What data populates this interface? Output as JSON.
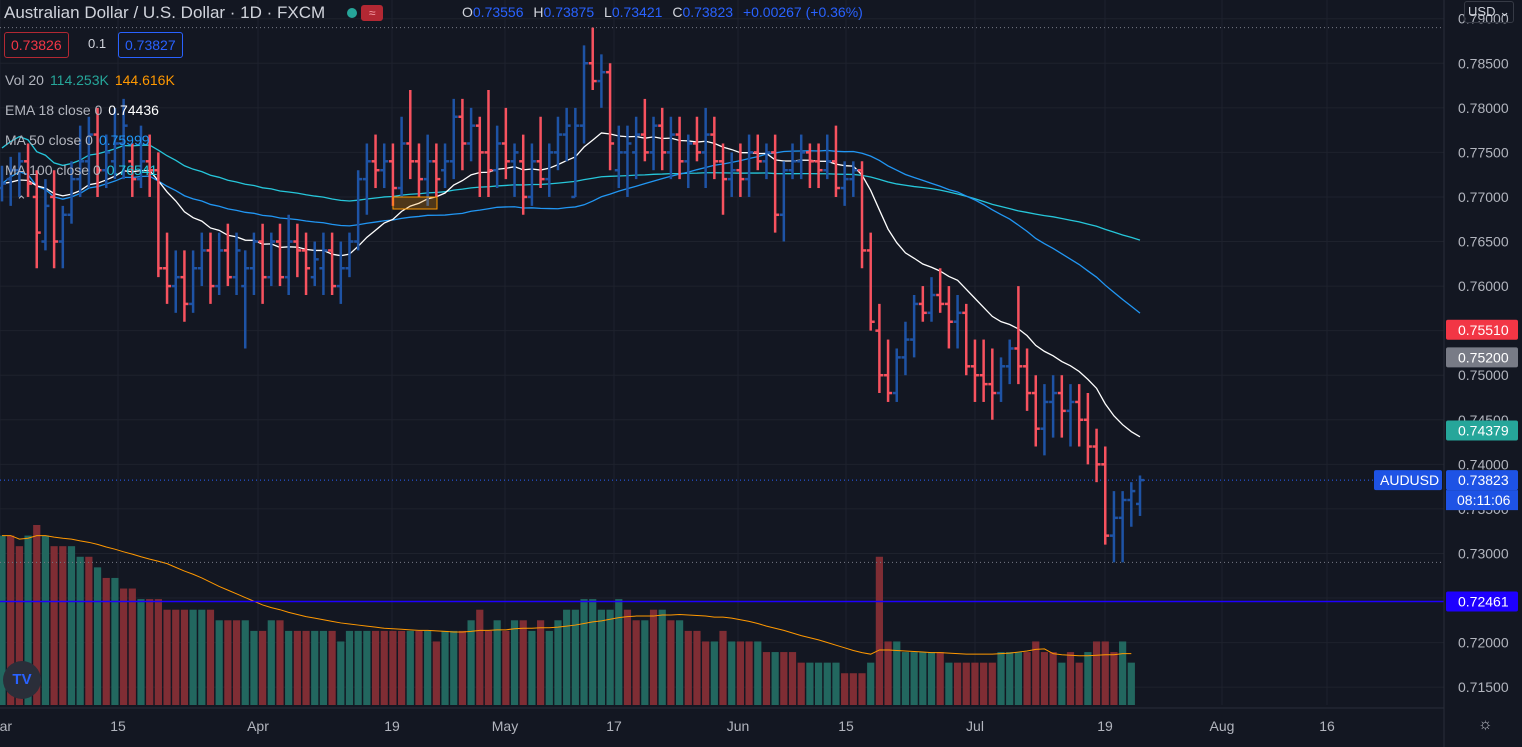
{
  "header": {
    "symbol_title": "Australian Dollar / U.S. Dollar · 1D · FXCM",
    "ohlc": {
      "o_label": "O",
      "o": "0.73556",
      "h_label": "H",
      "h": "0.73875",
      "l_label": "L",
      "l": "0.73421",
      "c_label": "C",
      "c": "0.73823",
      "change": "+0.00267 (+0.36%)"
    },
    "wave_icon": "wave-icon"
  },
  "trade": {
    "sell": "0.73826",
    "qty": "0.1",
    "buy": "0.73827"
  },
  "legend": {
    "vol": {
      "name": "Vol 20",
      "v1": "114.253K",
      "v2": "144.616K"
    },
    "ema": {
      "name": "EMA 18 close 0",
      "value": "0.74436"
    },
    "ma50": {
      "name": "MA 50 close 0",
      "value": "0.75999"
    },
    "ma100": {
      "name": "MA 100 close 0",
      "value": "0.76541"
    }
  },
  "currency_select": "USD",
  "logo_text": "TV",
  "colors": {
    "up": "#1e53a5",
    "down": "#f7525f",
    "vol_up": "#22675f",
    "vol_down": "#7f2d34",
    "ema": "#ffffff",
    "ma50": "#2196f3",
    "ma100": "#26c6da",
    "vol_ma": "#ff9800",
    "hline": "#1e00ff"
  },
  "chart_data": {
    "type": "ohlc",
    "y_ticks": [
      "0.79000",
      "0.78500",
      "0.78000",
      "0.77500",
      "0.77000",
      "0.76500",
      "0.76000",
      "0.75500",
      "0.75000",
      "0.74500",
      "0.74000",
      "0.73500",
      "0.73000",
      "0.72500",
      "0.72000",
      "0.71500"
    ],
    "x_ticks": [
      "Mar",
      "15",
      "Apr",
      "19",
      "May",
      "17",
      "Jun",
      "15",
      "Jul",
      "19",
      "Aug",
      "16"
    ],
    "ylim": [
      0.713,
      0.7912
    ],
    "price_labels": [
      {
        "text": "0.75510",
        "value": 0.7551,
        "color": "#f23645"
      },
      {
        "text": "0.75200",
        "value": 0.752,
        "color": "#787b86"
      },
      {
        "text": "0.74379",
        "value": 0.7438,
        "color": "#26a69a"
      },
      {
        "text": "0.73823",
        "value": 0.73823,
        "color": "#1e53e5",
        "tag": "AUDUSD",
        "sub": "08:11:06"
      },
      {
        "text": "0.72461",
        "value": 0.72461,
        "color": "#1e00ff"
      }
    ],
    "hline": 0.72461,
    "bars": [
      [
        0.771,
        0.7735,
        0.7695,
        0.7715
      ],
      [
        0.772,
        0.7745,
        0.769,
        0.773
      ],
      [
        0.773,
        0.775,
        0.77,
        0.774
      ],
      [
        0.774,
        0.776,
        0.77,
        0.7715
      ],
      [
        0.77,
        0.773,
        0.762,
        0.766
      ],
      [
        0.765,
        0.772,
        0.764,
        0.769
      ],
      [
        0.77,
        0.773,
        0.762,
        0.765
      ],
      [
        0.765,
        0.769,
        0.762,
        0.768
      ],
      [
        0.768,
        0.774,
        0.767,
        0.772
      ],
      [
        0.772,
        0.778,
        0.77,
        0.774
      ],
      [
        0.774,
        0.779,
        0.771,
        0.777
      ],
      [
        0.777,
        0.78,
        0.77,
        0.773
      ],
      [
        0.773,
        0.777,
        0.771,
        0.775
      ],
      [
        0.774,
        0.78,
        0.772,
        0.776
      ],
      [
        0.776,
        0.781,
        0.772,
        0.778
      ],
      [
        0.774,
        0.776,
        0.77,
        0.772
      ],
      [
        0.772,
        0.778,
        0.771,
        0.774
      ],
      [
        0.774,
        0.777,
        0.77,
        0.773
      ],
      [
        0.773,
        0.775,
        0.761,
        0.762
      ],
      [
        0.762,
        0.766,
        0.758,
        0.76
      ],
      [
        0.76,
        0.764,
        0.757,
        0.761
      ],
      [
        0.761,
        0.764,
        0.756,
        0.758
      ],
      [
        0.758,
        0.764,
        0.757,
        0.762
      ],
      [
        0.762,
        0.766,
        0.76,
        0.764
      ],
      [
        0.764,
        0.766,
        0.758,
        0.76
      ],
      [
        0.76,
        0.766,
        0.759,
        0.764
      ],
      [
        0.764,
        0.767,
        0.76,
        0.761
      ],
      [
        0.761,
        0.766,
        0.759,
        0.764
      ],
      [
        0.76,
        0.764,
        0.753,
        0.762
      ],
      [
        0.762,
        0.766,
        0.759,
        0.765
      ],
      [
        0.765,
        0.767,
        0.758,
        0.761
      ],
      [
        0.761,
        0.766,
        0.76,
        0.765
      ],
      [
        0.765,
        0.767,
        0.76,
        0.761
      ],
      [
        0.761,
        0.768,
        0.759,
        0.765
      ],
      [
        0.765,
        0.767,
        0.761,
        0.764
      ],
      [
        0.764,
        0.766,
        0.759,
        0.762
      ],
      [
        0.761,
        0.765,
        0.76,
        0.763
      ],
      [
        0.762,
        0.766,
        0.759,
        0.764
      ],
      [
        0.764,
        0.766,
        0.759,
        0.76
      ],
      [
        0.76,
        0.765,
        0.758,
        0.762
      ],
      [
        0.762,
        0.766,
        0.761,
        0.765
      ],
      [
        0.765,
        0.773,
        0.764,
        0.772
      ],
      [
        0.772,
        0.776,
        0.768,
        0.774
      ],
      [
        0.774,
        0.777,
        0.771,
        0.773
      ],
      [
        0.773,
        0.776,
        0.771,
        0.774
      ],
      [
        0.774,
        0.776,
        0.769,
        0.771
      ],
      [
        0.771,
        0.779,
        0.77,
        0.776
      ],
      [
        0.776,
        0.782,
        0.772,
        0.774
      ],
      [
        0.774,
        0.776,
        0.77,
        0.772
      ],
      [
        0.772,
        0.777,
        0.769,
        0.774
      ],
      [
        0.774,
        0.776,
        0.77,
        0.772
      ],
      [
        0.773,
        0.776,
        0.771,
        0.774
      ],
      [
        0.774,
        0.781,
        0.772,
        0.779
      ],
      [
        0.779,
        0.781,
        0.773,
        0.776
      ],
      [
        0.776,
        0.78,
        0.774,
        0.778
      ],
      [
        0.778,
        0.779,
        0.77,
        0.775
      ],
      [
        0.775,
        0.782,
        0.77,
        0.773
      ],
      [
        0.773,
        0.778,
        0.771,
        0.776
      ],
      [
        0.776,
        0.78,
        0.772,
        0.774
      ],
      [
        0.774,
        0.776,
        0.77,
        0.775
      ],
      [
        0.774,
        0.777,
        0.768,
        0.77
      ],
      [
        0.77,
        0.776,
        0.769,
        0.774
      ],
      [
        0.774,
        0.779,
        0.771,
        0.772
      ],
      [
        0.772,
        0.776,
        0.77,
        0.775
      ],
      [
        0.775,
        0.779,
        0.773,
        0.777
      ],
      [
        0.777,
        0.78,
        0.774,
        0.778
      ],
      [
        0.77,
        0.78,
        0.77,
        0.778
      ],
      [
        0.778,
        0.787,
        0.776,
        0.785
      ],
      [
        0.785,
        0.789,
        0.782,
        0.783
      ],
      [
        0.783,
        0.786,
        0.78,
        0.784
      ],
      [
        0.784,
        0.785,
        0.773,
        0.776
      ],
      [
        0.773,
        0.778,
        0.771,
        0.775
      ],
      [
        0.775,
        0.778,
        0.77,
        0.776
      ],
      [
        0.775,
        0.779,
        0.772,
        0.777
      ],
      [
        0.777,
        0.781,
        0.774,
        0.775
      ],
      [
        0.775,
        0.779,
        0.773,
        0.778
      ],
      [
        0.778,
        0.78,
        0.773,
        0.775
      ],
      [
        0.775,
        0.779,
        0.772,
        0.777
      ],
      [
        0.777,
        0.779,
        0.772,
        0.774
      ],
      [
        0.774,
        0.777,
        0.771,
        0.776
      ],
      [
        0.776,
        0.779,
        0.774,
        0.775
      ],
      [
        0.775,
        0.78,
        0.771,
        0.777
      ],
      [
        0.777,
        0.779,
        0.772,
        0.774
      ],
      [
        0.774,
        0.776,
        0.768,
        0.772
      ],
      [
        0.772,
        0.775,
        0.77,
        0.773
      ],
      [
        0.773,
        0.776,
        0.77,
        0.772
      ],
      [
        0.772,
        0.777,
        0.77,
        0.775
      ],
      [
        0.775,
        0.777,
        0.773,
        0.774
      ],
      [
        0.774,
        0.776,
        0.772,
        0.775
      ],
      [
        0.775,
        0.777,
        0.766,
        0.768
      ],
      [
        0.768,
        0.774,
        0.765,
        0.773
      ],
      [
        0.773,
        0.776,
        0.772,
        0.774
      ],
      [
        0.774,
        0.777,
        0.772,
        0.775
      ],
      [
        0.775,
        0.776,
        0.771,
        0.774
      ],
      [
        0.774,
        0.776,
        0.771,
        0.773
      ],
      [
        0.773,
        0.777,
        0.772,
        0.774
      ],
      [
        0.774,
        0.778,
        0.77,
        0.771
      ],
      [
        0.771,
        0.774,
        0.769,
        0.772
      ],
      [
        0.772,
        0.774,
        0.77,
        0.773
      ],
      [
        0.773,
        0.774,
        0.762,
        0.764
      ],
      [
        0.764,
        0.766,
        0.755,
        0.756
      ],
      [
        0.755,
        0.758,
        0.748,
        0.75
      ],
      [
        0.75,
        0.754,
        0.747,
        0.748
      ],
      [
        0.748,
        0.753,
        0.747,
        0.752
      ],
      [
        0.752,
        0.756,
        0.75,
        0.754
      ],
      [
        0.754,
        0.759,
        0.752,
        0.758
      ],
      [
        0.758,
        0.76,
        0.756,
        0.757
      ],
      [
        0.757,
        0.761,
        0.756,
        0.759
      ],
      [
        0.759,
        0.762,
        0.757,
        0.758
      ],
      [
        0.758,
        0.76,
        0.753,
        0.756
      ],
      [
        0.756,
        0.759,
        0.753,
        0.757
      ],
      [
        0.757,
        0.758,
        0.75,
        0.751
      ],
      [
        0.751,
        0.754,
        0.747,
        0.75
      ],
      [
        0.75,
        0.754,
        0.747,
        0.749
      ],
      [
        0.749,
        0.753,
        0.745,
        0.748
      ],
      [
        0.748,
        0.752,
        0.747,
        0.751
      ],
      [
        0.751,
        0.754,
        0.749,
        0.753
      ],
      [
        0.753,
        0.76,
        0.749,
        0.751
      ],
      [
        0.751,
        0.753,
        0.746,
        0.748
      ],
      [
        0.748,
        0.75,
        0.742,
        0.744
      ],
      [
        0.744,
        0.749,
        0.741,
        0.747
      ],
      [
        0.747,
        0.75,
        0.743,
        0.748
      ],
      [
        0.748,
        0.75,
        0.743,
        0.746
      ],
      [
        0.746,
        0.749,
        0.742,
        0.747
      ],
      [
        0.747,
        0.749,
        0.742,
        0.745
      ],
      [
        0.745,
        0.748,
        0.74,
        0.742
      ],
      [
        0.742,
        0.744,
        0.738,
        0.74
      ],
      [
        0.74,
        0.742,
        0.731,
        0.732
      ],
      [
        0.732,
        0.737,
        0.729,
        0.734
      ],
      [
        0.734,
        0.737,
        0.729,
        0.736
      ],
      [
        0.736,
        0.738,
        0.733,
        0.737
      ],
      [
        0.73556,
        0.73875,
        0.73421,
        0.73823
      ]
    ],
    "volume": [
      0.16,
      0.16,
      0.15,
      0.16,
      0.17,
      0.16,
      0.15,
      0.15,
      0.15,
      0.14,
      0.14,
      0.13,
      0.12,
      0.12,
      0.11,
      0.11,
      0.1,
      0.1,
      0.1,
      0.09,
      0.09,
      0.09,
      0.09,
      0.09,
      0.09,
      0.08,
      0.08,
      0.08,
      0.08,
      0.07,
      0.07,
      0.08,
      0.08,
      0.07,
      0.07,
      0.07,
      0.07,
      0.07,
      0.07,
      0.06,
      0.07,
      0.07,
      0.07,
      0.07,
      0.07,
      0.07,
      0.07,
      0.07,
      0.07,
      0.07,
      0.06,
      0.07,
      0.07,
      0.07,
      0.08,
      0.09,
      0.07,
      0.08,
      0.07,
      0.08,
      0.08,
      0.07,
      0.08,
      0.07,
      0.08,
      0.09,
      0.09,
      0.1,
      0.1,
      0.09,
      0.09,
      0.1,
      0.09,
      0.08,
      0.08,
      0.09,
      0.09,
      0.08,
      0.08,
      0.07,
      0.07,
      0.06,
      0.06,
      0.07,
      0.06,
      0.06,
      0.06,
      0.06,
      0.05,
      0.05,
      0.05,
      0.05,
      0.04,
      0.04,
      0.04,
      0.04,
      0.04,
      0.03,
      0.03,
      0.03,
      0.04,
      0.14,
      0.06,
      0.06,
      0.05,
      0.05,
      0.05,
      0.05,
      0.05,
      0.04,
      0.04,
      0.04,
      0.04,
      0.04,
      0.04,
      0.05,
      0.05,
      0.05,
      0.05,
      0.06,
      0.05,
      0.05,
      0.04,
      0.05,
      0.04,
      0.05,
      0.06,
      0.06,
      0.05,
      0.06,
      0.04
    ],
    "vol_dir": [
      1,
      0,
      0,
      1,
      0,
      1,
      0,
      0,
      1,
      1,
      0,
      1,
      0,
      1,
      0,
      0,
      1,
      0,
      0,
      0,
      0,
      0,
      1,
      1,
      0,
      1,
      0,
      0,
      1,
      1,
      0,
      1,
      0,
      1,
      0,
      0,
      1,
      1,
      0,
      1,
      1,
      1,
      1,
      0,
      0,
      0,
      0,
      1,
      0,
      1,
      0,
      1,
      1,
      0,
      1,
      0,
      0,
      1,
      0,
      1,
      0,
      1,
      0,
      1,
      1,
      1,
      1,
      1,
      1,
      1,
      1,
      1,
      0,
      0,
      1,
      0,
      1,
      0,
      1,
      0,
      0,
      0,
      1,
      0,
      1,
      0,
      0,
      1,
      0,
      1,
      0,
      0,
      0,
      1,
      1,
      1,
      1,
      0,
      0,
      0,
      1,
      0,
      0,
      1,
      1,
      1,
      1,
      1,
      0,
      1,
      0,
      0,
      0,
      0,
      0,
      1,
      1,
      1,
      0,
      0,
      0,
      0,
      1,
      0,
      0,
      1,
      0,
      0,
      0,
      1,
      1
    ],
    "ema18": [],
    "ma50": [],
    "ma100": [],
    "vol_ma": []
  }
}
